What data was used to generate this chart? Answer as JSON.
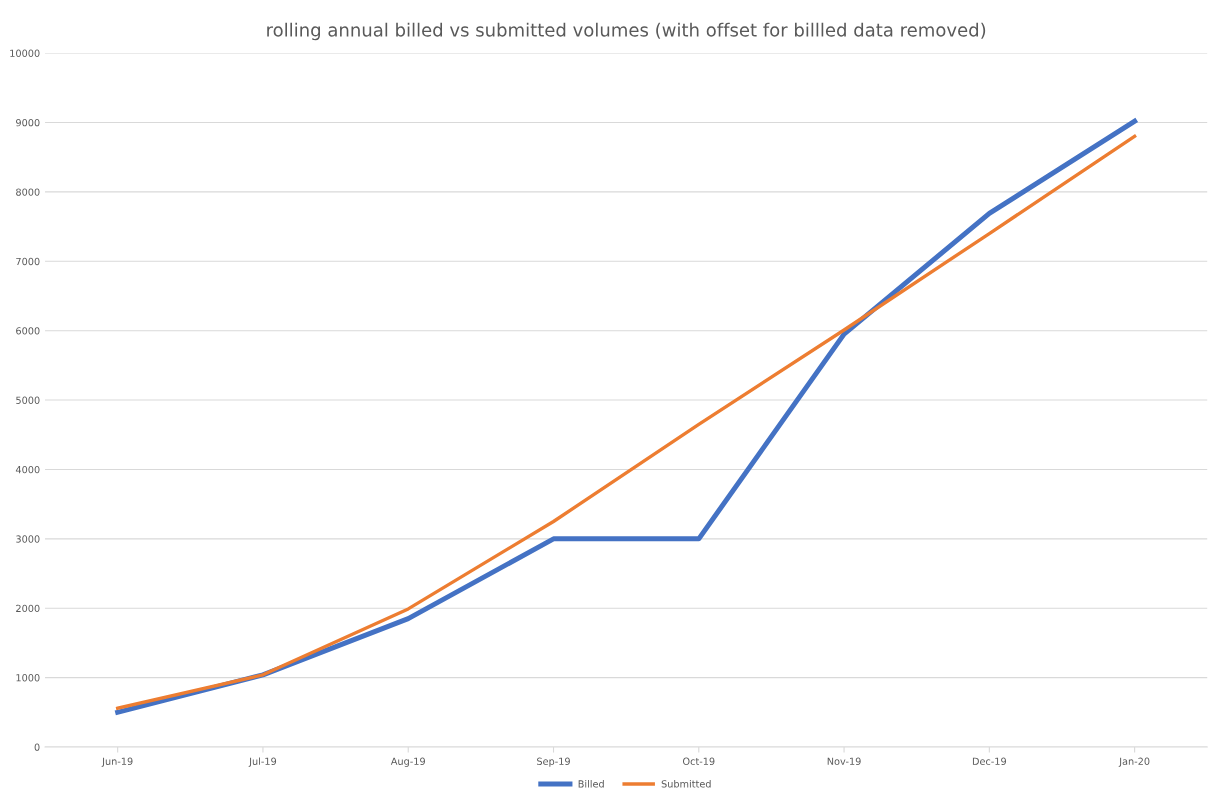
{
  "chart_data": {
    "type": "line",
    "title": "rolling annual billed vs submitted volumes (with offset for billled data removed)",
    "categories": [
      "Jun-19",
      "Jul-19",
      "Aug-19",
      "Sep-19",
      "Oct-19",
      "Nov-19",
      "Dec-19",
      "Jan-20"
    ],
    "series": [
      {
        "name": "Billed",
        "color": "#4472c4",
        "values": [
          500,
          1040,
          1850,
          3000,
          3000,
          5950,
          7690,
          9020
        ]
      },
      {
        "name": "Submitted",
        "color": "#ed7d31",
        "values": [
          560,
          1040,
          1990,
          3250,
          4650,
          6010,
          7400,
          8800
        ]
      }
    ],
    "ylim": [
      0,
      10000
    ],
    "yticks": [
      0,
      1000,
      2000,
      3000,
      4000,
      5000,
      6000,
      7000,
      8000,
      9000,
      10000
    ],
    "grid": "y",
    "legend": "bottom",
    "marker": "none",
    "line_style": "solid"
  }
}
